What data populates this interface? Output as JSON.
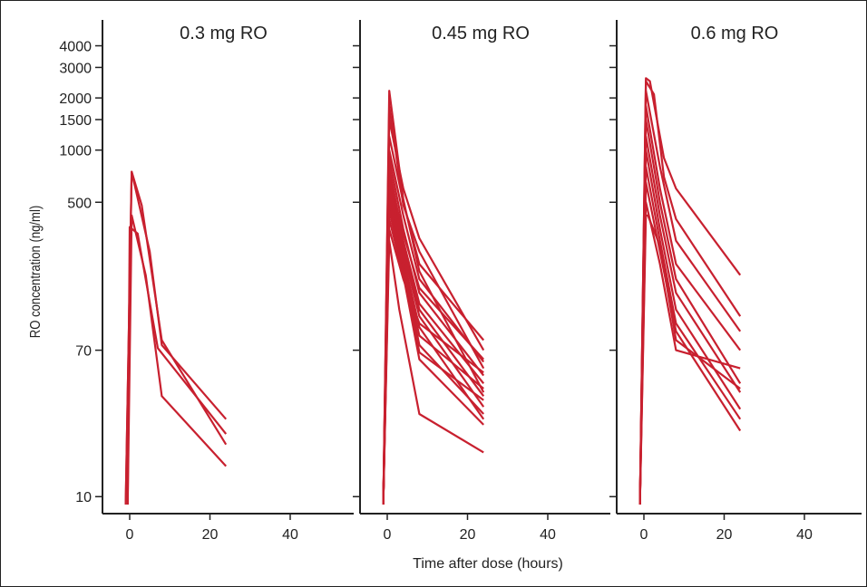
{
  "chart_data": {
    "type": "line",
    "xlabel": "Time after dose (hours)",
    "ylabel": "RO concentration (ng/ml)",
    "y_scale": "log",
    "ylim": [
      9,
      5000
    ],
    "xlim": [
      -4,
      55
    ],
    "y_ticks": [
      10,
      70,
      500,
      1000,
      1500,
      2000,
      3000,
      4000
    ],
    "y_tick_labels": [
      "10",
      "70",
      "500",
      "1000",
      "1500",
      "2000",
      "3000",
      "4000"
    ],
    "x_ticks": [
      0,
      20,
      40
    ],
    "x_tick_labels": [
      "0",
      "20",
      "40"
    ],
    "line_color": "#c8202f",
    "panels": [
      {
        "title": "0.3 mg RO",
        "series": [
          {
            "x": [
              -1,
              0.5,
              3,
              8,
              24
            ],
            "y": [
              5,
              750,
              480,
              80,
              20
            ]
          },
          {
            "x": [
              -1,
              0.5,
              5,
              8,
              24
            ],
            "y": [
              5,
              750,
              260,
              75,
              28
            ]
          },
          {
            "x": [
              -0.5,
              0.5,
              4,
              8,
              24
            ],
            "y": [
              5,
              420,
              190,
              38,
              15
            ]
          },
          {
            "x": [
              -0.5,
              0,
              2,
              7,
              24
            ],
            "y": [
              5,
              360,
              330,
              72,
              23
            ]
          }
        ]
      },
      {
        "title": "0.45 mg RO",
        "series": [
          {
            "x": [
              -1,
              0.5,
              4,
              8,
              24
            ],
            "y": [
              5,
              2200,
              520,
              200,
              40
            ]
          },
          {
            "x": [
              -1,
              0.5,
              4,
              8,
              24
            ],
            "y": [
              5,
              1800,
              480,
              260,
              55
            ]
          },
          {
            "x": [
              -1,
              0.5,
              4,
              8,
              24
            ],
            "y": [
              5,
              1500,
              600,
              310,
              70
            ]
          },
          {
            "x": [
              -1,
              0.5,
              4,
              8,
              24
            ],
            "y": [
              5,
              1200,
              500,
              220,
              80
            ]
          },
          {
            "x": [
              -1,
              0.5,
              4,
              8,
              24
            ],
            "y": [
              5,
              1000,
              420,
              180,
              60
            ]
          },
          {
            "x": [
              -1,
              0.5,
              4,
              8,
              24
            ],
            "y": [
              5,
              900,
              350,
              150,
              50
            ]
          },
          {
            "x": [
              -1,
              0.5,
              4,
              8,
              24
            ],
            "y": [
              5,
              800,
              300,
              130,
              45
            ]
          },
          {
            "x": [
              -1,
              0.5,
              4,
              8,
              24
            ],
            "y": [
              5,
              700,
              280,
              120,
              38
            ]
          },
          {
            "x": [
              -1,
              0.5,
              4,
              8,
              24
            ],
            "y": [
              5,
              650,
              260,
              110,
              33
            ]
          },
          {
            "x": [
              -1,
              0.5,
              4,
              8,
              24
            ],
            "y": [
              5,
              600,
              240,
              95,
              28
            ]
          },
          {
            "x": [
              -1,
              0.5,
              4,
              8,
              24
            ],
            "y": [
              5,
              550,
              220,
              85,
              42
            ]
          },
          {
            "x": [
              -1,
              0.5,
              4,
              8,
              24
            ],
            "y": [
              5,
              500,
              210,
              75,
              30
            ]
          },
          {
            "x": [
              -1,
              0.5,
              4,
              8,
              24
            ],
            "y": [
              5,
              450,
              200,
              68,
              36
            ]
          },
          {
            "x": [
              -1,
              0.5,
              4,
              8,
              24
            ],
            "y": [
              5,
              400,
              190,
              62,
              26
            ]
          },
          {
            "x": [
              -1,
              0.5,
              4,
              8,
              24
            ],
            "y": [
              5,
              350,
              180,
              100,
              52
            ]
          },
          {
            "x": [
              -1,
              0.5,
              3,
              8,
              24
            ],
            "y": [
              5,
              300,
              120,
              30,
              18
            ]
          },
          {
            "x": [
              -1,
              0.5,
              4,
              8,
              24
            ],
            "y": [
              5,
              700,
              330,
              160,
              62
            ]
          }
        ]
      },
      {
        "title": "0.6 mg RO",
        "series": [
          {
            "x": [
              -1,
              0.5,
              1.5,
              5,
              8,
              24
            ],
            "y": [
              5,
              2600,
              2500,
              900,
              600,
              190
            ]
          },
          {
            "x": [
              -1,
              0.5,
              2.5,
              5,
              8,
              24
            ],
            "y": [
              5,
              2500,
              2100,
              700,
              400,
              110
            ]
          },
          {
            "x": [
              -1,
              0.5,
              4,
              8,
              24
            ],
            "y": [
              5,
              2200,
              800,
              300,
              90
            ]
          },
          {
            "x": [
              -1,
              0.5,
              4,
              8,
              24
            ],
            "y": [
              5,
              1800,
              600,
              220,
              70
            ]
          },
          {
            "x": [
              -1,
              0.5,
              4,
              8,
              24
            ],
            "y": [
              5,
              1500,
              500,
              180,
              45
            ]
          },
          {
            "x": [
              -1,
              0.5,
              4,
              8,
              24
            ],
            "y": [
              5,
              1200,
              420,
              150,
              40
            ]
          },
          {
            "x": [
              -1,
              0.5,
              4,
              8,
              24
            ],
            "y": [
              5,
              1000,
              350,
              120,
              32
            ]
          },
          {
            "x": [
              -1,
              0.5,
              4,
              8,
              24
            ],
            "y": [
              5,
              800,
              300,
              100,
              28
            ]
          },
          {
            "x": [
              -1,
              0.5,
              4,
              8,
              24
            ],
            "y": [
              5,
              650,
              260,
              90,
              24
            ]
          },
          {
            "x": [
              -1,
              0.5,
              1,
              4,
              8,
              24
            ],
            "y": [
              5,
              420,
              420,
              280,
              80,
              42
            ]
          },
          {
            "x": [
              -1,
              0.5,
              4,
              8,
              24
            ],
            "y": [
              5,
              500,
              220,
              70,
              55
            ]
          }
        ]
      }
    ]
  }
}
